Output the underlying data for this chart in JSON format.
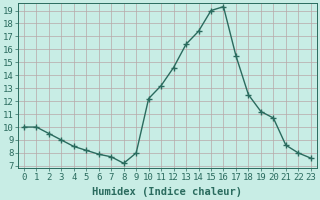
{
  "x": [
    0,
    1,
    2,
    3,
    4,
    5,
    6,
    7,
    8,
    9,
    10,
    11,
    12,
    13,
    14,
    15,
    16,
    17,
    18,
    19,
    20,
    21,
    22,
    23
  ],
  "y": [
    10,
    10,
    9.5,
    9.0,
    8.5,
    8.2,
    7.9,
    7.7,
    7.2,
    8.0,
    12.2,
    13.2,
    14.6,
    16.4,
    17.4,
    19.0,
    19.3,
    15.5,
    12.5,
    11.2,
    10.7,
    8.6,
    8.0,
    7.6
  ],
  "line_color": "#2a6b5e",
  "marker": "+",
  "marker_size": 4,
  "bg_color": "#c8ede5",
  "grid_color": "#b8a8a8",
  "xlabel": "Humidex (Indice chaleur)",
  "ylabel_ticks": [
    7,
    8,
    9,
    10,
    11,
    12,
    13,
    14,
    15,
    16,
    17,
    18,
    19
  ],
  "xlim": [
    -0.5,
    23.5
  ],
  "ylim": [
    6.8,
    19.6
  ],
  "tick_color": "#2a6b5e",
  "label_fontsize": 7.5,
  "tick_fontsize": 6.5
}
